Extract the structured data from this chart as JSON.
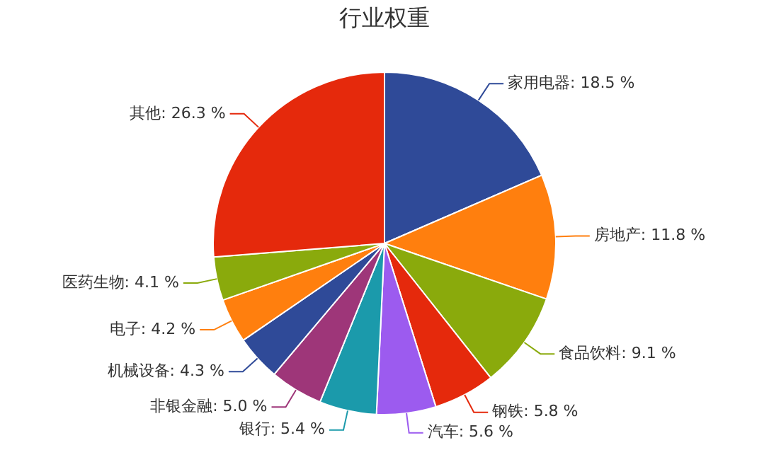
{
  "chart_data": {
    "type": "pie",
    "title": "行业权重",
    "categories": [
      "家用电器",
      "房地产",
      "食品饮料",
      "钢铁",
      "汽车",
      "银行",
      "非银金融",
      "机械设备",
      "电子",
      "医药生物",
      "其他"
    ],
    "values": [
      18.5,
      11.8,
      9.1,
      5.8,
      5.6,
      5.4,
      5.0,
      4.3,
      4.2,
      4.1,
      26.3
    ],
    "value_labels": [
      "18.5 %",
      "11.8 %",
      "9.1 %",
      "5.8 %",
      "5.6 %",
      "5.4 %",
      "5.0 %",
      "4.3 %",
      "4.2 %",
      "4.1 %",
      "26.3 %"
    ],
    "colors": [
      "#2f4a98",
      "#ff7f0e",
      "#8aaa0c",
      "#e5290c",
      "#9c5bef",
      "#1b9aab",
      "#9e3679",
      "#2f4a98",
      "#ff7f0e",
      "#8aaa0c",
      "#e5290c"
    ],
    "legend": false
  }
}
